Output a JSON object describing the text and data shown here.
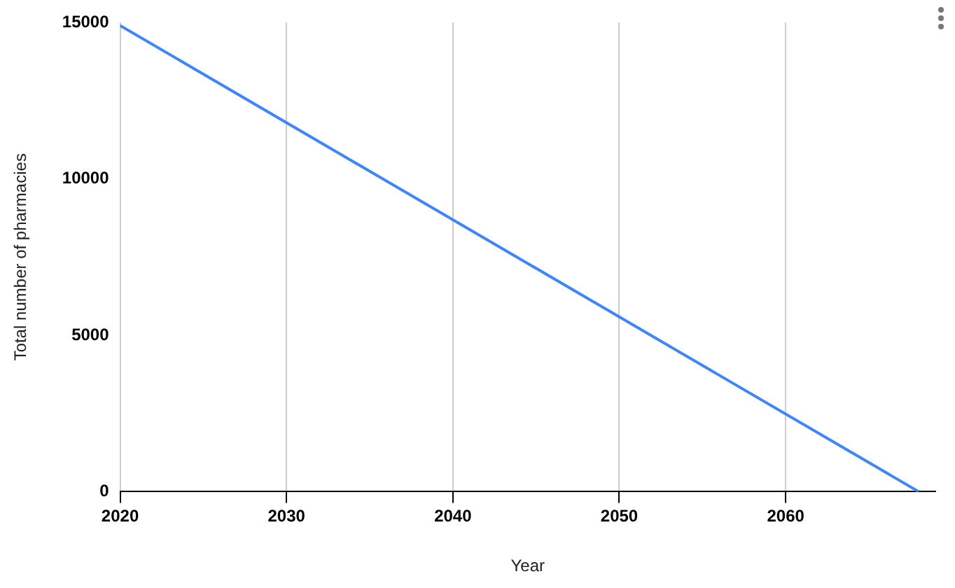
{
  "chart_data": {
    "type": "line",
    "xlabel": "Year",
    "ylabel": "Total number of pharmacies",
    "x": [
      2020,
      2068
    ],
    "series": [
      {
        "color": "#4285f4",
        "values": [
          14900,
          0
        ]
      }
    ],
    "xlim": [
      2020,
      2069
    ],
    "xticks": [
      2020,
      2030,
      2040,
      2050,
      2060
    ],
    "ylim": [
      0,
      15000
    ],
    "yticks": [
      0,
      5000,
      10000,
      15000
    ],
    "grid": "x",
    "legend": false,
    "marker": "none",
    "line_style": "solid"
  }
}
